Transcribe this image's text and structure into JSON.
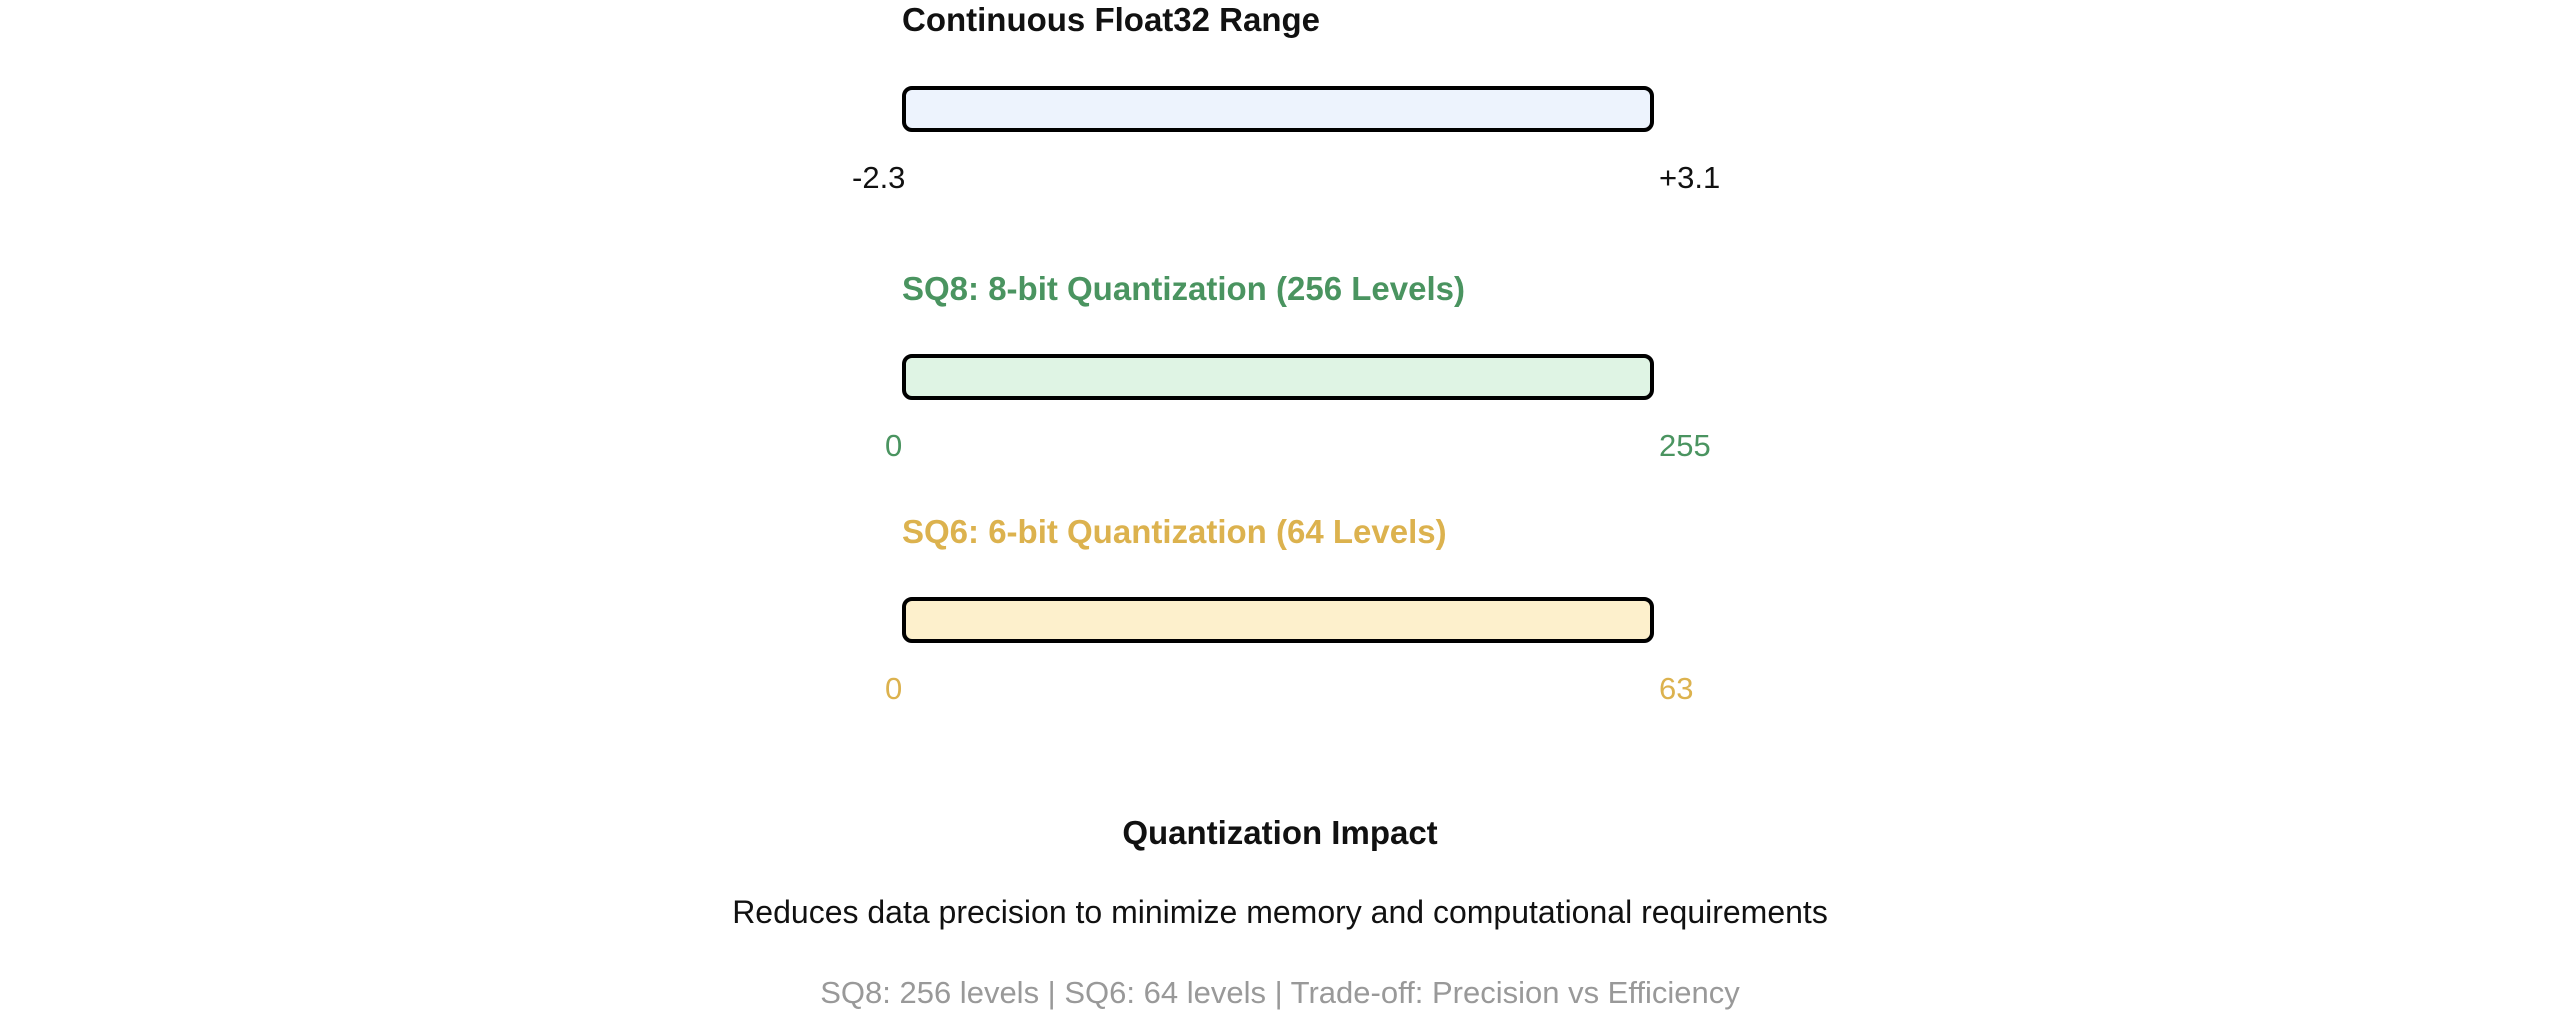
{
  "colors": {
    "dark": "#111111",
    "green": "#4a9460",
    "gold": "#dcb24e",
    "gray": "#999999",
    "float_fill": "#edf3fd",
    "sq8_fill": "#dff4e4",
    "sq6_fill": "#fdf0cc"
  },
  "float_range": {
    "title": "Continuous Float32 Range",
    "min_label": "-2.3",
    "max_label": "+3.1"
  },
  "sq8": {
    "title": "SQ8: 8-bit Quantization (256 Levels)",
    "min_label": "0",
    "max_label": "255"
  },
  "sq6": {
    "title": "SQ6: 6-bit Quantization (64 Levels)",
    "min_label": "0",
    "max_label": "63"
  },
  "impact": {
    "heading": "Quantization Impact",
    "description": "Reduces data precision to minimize memory and computational requirements",
    "summary": "SQ8: 256 levels | SQ6: 64 levels | Trade-off: Precision vs Efficiency"
  }
}
